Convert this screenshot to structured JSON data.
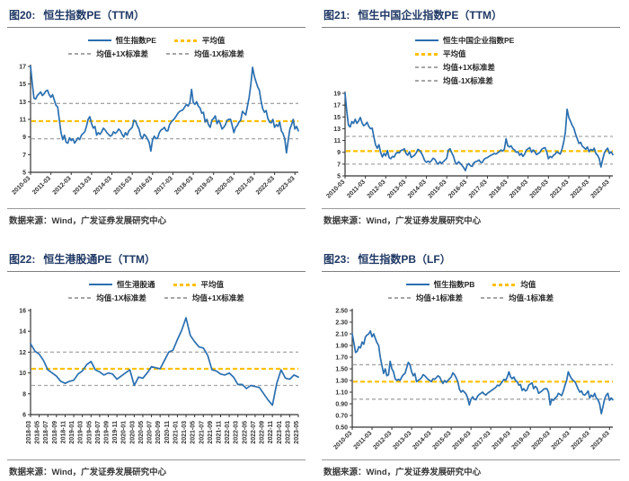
{
  "source_note": "数据来源：Wind，广发证券发展研究中心",
  "colors": {
    "line": "#2B6FB0",
    "mean": "#FFC000",
    "std": "#A6A6A6",
    "title": "#1F3864",
    "axis": "#333333"
  },
  "panels": [
    {
      "fig_label": "图20:",
      "title": "恒生指数PE（TTM）",
      "legend_layout": "grid",
      "legend_rows": [
        [
          0,
          1
        ],
        [
          2,
          3
        ]
      ]
    },
    {
      "fig_label": "图21:",
      "title": "恒生中国企业指数PE（TTM）",
      "legend_layout": "stack",
      "legend_rows": [
        [
          0
        ],
        [
          1
        ],
        [
          2
        ],
        [
          3
        ]
      ]
    },
    {
      "fig_label": "图22:",
      "title": "恒生港股通PE（TTM）",
      "legend_layout": "grid",
      "legend_rows": [
        [
          0,
          1
        ],
        [
          2,
          3
        ]
      ]
    },
    {
      "fig_label": "图23:",
      "title": "恒生指数PB（LF）",
      "legend_layout": "grid",
      "legend_rows": [
        [
          0,
          1
        ],
        [
          2,
          3
        ]
      ]
    }
  ],
  "chart_data": [
    {
      "type": "line",
      "title": "恒生指数PE（TTM）",
      "legend": [
        {
          "label": "恒生指数PE",
          "style": "line",
          "color": "line"
        },
        {
          "label": "平均值",
          "style": "dash",
          "color": "mean"
        },
        {
          "label": "均值+1X标准差",
          "style": "dash",
          "color": "std"
        },
        {
          "label": "均值-1X标准差",
          "style": "dash",
          "color": "std"
        }
      ],
      "x_start": "2010-03",
      "x_end": "2023-05",
      "x_freq": "monthly",
      "x_tick_labels": [
        "2010-03",
        "2011-03",
        "2012-03",
        "2013-03",
        "2014-03",
        "2015-03",
        "2016-03",
        "2017-03",
        "2018-03",
        "2019-03",
        "2020-03",
        "2021-03",
        "2022-03",
        "2023-03"
      ],
      "x_tick_every": 12,
      "ylim": [
        5,
        17
      ],
      "yticks": [
        5,
        7,
        9,
        11,
        13,
        15,
        17
      ],
      "ytick_labels": [
        "5",
        "7",
        "9",
        "11",
        "13",
        "15",
        "17"
      ],
      "ref_lines": {
        "mean": 10.8,
        "plus1std": 12.8,
        "minus1std": 8.8
      },
      "series": [
        {
          "name": "恒生指数PE",
          "values": [
            17.0,
            15.1,
            13.4,
            13.3,
            13.7,
            13.9,
            14.1,
            13.7,
            13.9,
            14.2,
            14.3,
            13.8,
            13.5,
            13.8,
            13.2,
            12.6,
            12.4,
            10.9,
            9.5,
            8.7,
            9.2,
            8.4,
            8.3,
            8.9,
            8.6,
            8.8,
            8.3,
            8.6,
            8.9,
            8.7,
            9.2,
            9.4,
            9.6,
            10.2,
            11.0,
            11.3,
            10.5,
            10.0,
            10.2,
            9.2,
            9.5,
            9.3,
            9.6,
            10.0,
            9.8,
            9.5,
            9.3,
            9.1,
            9.2,
            9.6,
            9.4,
            9.6,
            9.9,
            9.7,
            9.3,
            9.0,
            9.5,
            9.2,
            9.7,
            9.9,
            10.1,
            10.9,
            10.8,
            10.3,
            9.9,
            9.1,
            8.8,
            9.3,
            9.1,
            8.8,
            8.4,
            7.4,
            8.7,
            9.1,
            8.8,
            8.9,
            9.5,
            9.8,
            9.9,
            10.1,
            9.7,
            9.7,
            10.4,
            10.7,
            10.9,
            11.1,
            11.4,
            11.7,
            11.9,
            12.0,
            12.1,
            12.4,
            12.7,
            12.5,
            12.9,
            14.4,
            12.9,
            12.7,
            13.0,
            12.5,
            12.3,
            11.7,
            11.8,
            10.7,
            11.0,
            10.4,
            10.1,
            10.9,
            11.1,
            11.4,
            10.5,
            10.9,
            10.5,
            9.9,
            10.1,
            10.4,
            10.9,
            11.0,
            11.0,
            10.3,
            9.5,
            10.1,
            10.3,
            10.7,
            10.9,
            11.9,
            11.7,
            11.5,
            12.5,
            13.5,
            15.0,
            16.9,
            15.9,
            15.3,
            14.7,
            14.3,
            13.1,
            12.2,
            11.8,
            12.0,
            11.1,
            10.7,
            10.6,
            11.0,
            10.1,
            10.4,
            10.2,
            10.7,
            9.7,
            9.4,
            8.8,
            7.2,
            8.6,
            9.9,
            10.4,
            11.0,
            9.9,
            10.2,
            9.7
          ]
        }
      ]
    },
    {
      "type": "line",
      "title": "恒生中国企业指数PE（TTM）",
      "legend": [
        {
          "label": "恒生中国企业指数PE",
          "style": "line",
          "color": "line"
        },
        {
          "label": "平均值",
          "style": "dash",
          "color": "mean"
        },
        {
          "label": "均值+1X标准差",
          "style": "dash",
          "color": "std"
        },
        {
          "label": "均值-1X标准差",
          "style": "dash",
          "color": "std"
        }
      ],
      "x_start": "2010-03",
      "x_end": "2023-05",
      "x_freq": "monthly",
      "x_tick_labels": [
        "2010-03",
        "2011-03",
        "2012-03",
        "2013-03",
        "2014-03",
        "2015-03",
        "2016-03",
        "2017-03",
        "2018-03",
        "2019-03",
        "2020-03",
        "2021-03",
        "2022-03",
        "2023-03"
      ],
      "x_tick_every": 12,
      "ylim": [
        5,
        19
      ],
      "yticks": [
        5,
        7,
        9,
        11,
        13,
        15,
        17,
        19
      ],
      "ytick_labels": [
        "5",
        "7",
        "9",
        "11",
        "13",
        "15",
        "17",
        "19"
      ],
      "ref_lines": {
        "mean": 9.2,
        "plus1std": 11.7,
        "minus1std": 7.0
      },
      "series": [
        {
          "name": "恒生中国企业指数PE",
          "values": [
            19.0,
            16.0,
            13.6,
            13.3,
            14.2,
            13.9,
            14.6,
            13.9,
            14.3,
            14.9,
            14.0,
            13.5,
            13.7,
            14.1,
            13.4,
            13.0,
            13.1,
            11.6,
            10.3,
            9.7,
            10.3,
            9.0,
            8.2,
            8.8,
            8.4,
            9.3,
            8.1,
            7.9,
            8.3,
            8.2,
            8.8,
            9.0,
            8.9,
            9.3,
            9.4,
            9.6,
            8.8,
            8.5,
            9.1,
            8.1,
            8.3,
            8.5,
            8.9,
            9.5,
            9.3,
            8.9,
            8.3,
            7.6,
            7.3,
            7.5,
            7.3,
            7.6,
            8.0,
            7.8,
            7.3,
            7.0,
            7.4,
            7.1,
            7.4,
            7.7,
            8.0,
            9.4,
            9.6,
            8.9,
            8.3,
            7.3,
            7.0,
            7.4,
            7.1,
            6.8,
            6.4,
            5.9,
            6.8,
            7.1,
            6.7,
            6.6,
            7.2,
            7.4,
            7.5,
            7.7,
            7.3,
            7.3,
            7.8,
            8.0,
            8.1,
            8.3,
            8.5,
            8.6,
            8.8,
            8.7,
            8.9,
            9.1,
            9.4,
            9.2,
            9.5,
            11.3,
            10.1,
            9.9,
            10.1,
            9.6,
            9.4,
            9.0,
            9.1,
            8.5,
            8.8,
            8.3,
            8.7,
            9.4,
            9.6,
            9.8,
            9.0,
            9.4,
            9.1,
            8.6,
            8.8,
            9.0,
            9.5,
            9.7,
            9.8,
            9.1,
            7.9,
            8.3,
            8.1,
            8.5,
            8.7,
            9.1,
            8.9,
            8.7,
            9.5,
            10.7,
            12.4,
            16.3,
            14.9,
            14.3,
            13.6,
            13.1,
            12.1,
            11.3,
            10.5,
            10.7,
            10.0,
            9.8,
            9.5,
            9.9,
            9.1,
            9.5,
            9.3,
            9.7,
            8.8,
            8.5,
            7.9,
            6.5,
            7.8,
            8.9,
            9.4,
            9.7,
            8.8,
            9.1,
            8.6
          ]
        }
      ]
    },
    {
      "type": "line",
      "title": "恒生港股通PE（TTM）",
      "legend": [
        {
          "label": "恒生港股通",
          "style": "line",
          "color": "line"
        },
        {
          "label": "平均值",
          "style": "dash",
          "color": "mean"
        },
        {
          "label": "均值-1X标准差",
          "style": "dash",
          "color": "std"
        },
        {
          "label": "均值+1X标准差",
          "style": "dash",
          "color": "std"
        }
      ],
      "x_start": "2018-03",
      "x_end": "2023-05",
      "x_freq": "monthly",
      "x_tick_labels": [
        "2018-03",
        "2018-05",
        "2018-07",
        "2018-09",
        "2018-11",
        "2019-01",
        "2019-03",
        "2019-05",
        "2019-07",
        "2019-09",
        "2019-11",
        "2020-01",
        "2020-03",
        "2020-05",
        "2020-07",
        "2020-09",
        "2020-11",
        "2021-01",
        "2021-03",
        "2021-05",
        "2021-07",
        "2021-09",
        "2021-11",
        "2022-01",
        "2022-03",
        "2022-05",
        "2022-07",
        "2022-09",
        "2022-11",
        "2023-01",
        "2023-03",
        "2023-05"
      ],
      "x_tick_every": 2,
      "ylim": [
        6,
        16
      ],
      "yticks": [
        6,
        8,
        10,
        12,
        14,
        16
      ],
      "ytick_labels": [
        "6",
        "8",
        "10",
        "12",
        "14",
        "16"
      ],
      "ref_lines": {
        "mean": 10.4,
        "plus1std": 12.0,
        "minus1std": 8.8
      },
      "series": [
        {
          "name": "恒生港股通",
          "values": [
            12.8,
            12.1,
            11.8,
            11.2,
            10.3,
            10.0,
            9.7,
            9.2,
            9.0,
            9.2,
            9.3,
            9.9,
            10.2,
            10.8,
            11.1,
            10.3,
            10.1,
            9.8,
            10.0,
            9.9,
            9.4,
            9.7,
            10.0,
            10.3,
            8.8,
            9.6,
            9.5,
            10.0,
            10.6,
            10.5,
            10.4,
            11.2,
            12.0,
            12.2,
            13.2,
            14.1,
            15.3,
            13.6,
            13.0,
            12.5,
            12.4,
            11.7,
            10.3,
            10.2,
            9.9,
            9.8,
            10.0,
            9.6,
            8.9,
            8.9,
            8.5,
            8.8,
            8.7,
            8.6,
            8.0,
            7.4,
            6.9,
            9.0,
            10.3,
            9.5,
            9.4,
            9.8,
            9.6
          ]
        }
      ]
    },
    {
      "type": "line",
      "title": "恒生指数PB（LF）",
      "legend": [
        {
          "label": "恒生指数PB",
          "style": "line",
          "color": "line"
        },
        {
          "label": "均值",
          "style": "dash",
          "color": "mean"
        },
        {
          "label": "均值+1标准差",
          "style": "dash",
          "color": "std"
        },
        {
          "label": "均值-1标准差",
          "style": "dash",
          "color": "std"
        }
      ],
      "x_start": "2010-03",
      "x_end": "2023-05",
      "x_freq": "monthly",
      "x_tick_labels": [
        "2010-03",
        "2011-03",
        "2012-03",
        "2013-03",
        "2014-03",
        "2015-03",
        "2016-03",
        "2017-03",
        "2018-03",
        "2019-03",
        "2020-03",
        "2021-03",
        "2022-03",
        "2023-03"
      ],
      "x_tick_every": 12,
      "ylim": [
        0.5,
        2.5
      ],
      "yticks": [
        0.5,
        0.7,
        0.9,
        1.1,
        1.3,
        1.5,
        1.7,
        1.9,
        2.1,
        2.3,
        2.5
      ],
      "ytick_labels": [
        "0.50",
        "0.70",
        "0.90",
        "1.10",
        "1.30",
        "1.50",
        "1.70",
        "1.90",
        "2.10",
        "2.30",
        "2.50"
      ],
      "ref_lines": {
        "mean": 1.28,
        "plus1std": 1.57,
        "minus1std": 0.98
      },
      "series": [
        {
          "name": "恒生指数PB",
          "values": [
            2.1,
            1.95,
            1.78,
            1.8,
            1.88,
            1.86,
            1.96,
            1.92,
            2.05,
            2.08,
            2.1,
            2.15,
            2.05,
            2.1,
            2.02,
            1.95,
            1.9,
            1.7,
            1.56,
            1.42,
            1.5,
            1.38,
            1.4,
            1.63,
            1.5,
            1.45,
            1.33,
            1.3,
            1.32,
            1.3,
            1.36,
            1.4,
            1.42,
            1.52,
            1.61,
            1.57,
            1.45,
            1.38,
            1.42,
            1.28,
            1.3,
            1.32,
            1.35,
            1.4,
            1.38,
            1.35,
            1.32,
            1.3,
            1.28,
            1.33,
            1.32,
            1.35,
            1.38,
            1.36,
            1.3,
            1.25,
            1.3,
            1.27,
            1.3,
            1.33,
            1.36,
            1.43,
            1.4,
            1.35,
            1.28,
            1.15,
            1.1,
            1.13,
            1.1,
            1.07,
            1.0,
            0.88,
            0.98,
            1.02,
            0.98,
            0.97,
            1.03,
            1.06,
            1.08,
            1.1,
            1.07,
            1.05,
            1.08,
            1.1,
            1.12,
            1.14,
            1.16,
            1.18,
            1.22,
            1.21,
            1.24,
            1.28,
            1.32,
            1.3,
            1.36,
            1.45,
            1.36,
            1.33,
            1.36,
            1.3,
            1.28,
            1.22,
            1.23,
            1.13,
            1.16,
            1.12,
            1.14,
            1.22,
            1.24,
            1.26,
            1.16,
            1.2,
            1.17,
            1.08,
            1.1,
            1.12,
            1.15,
            1.16,
            1.16,
            1.1,
            0.88,
            0.98,
            0.96,
            1.0,
            1.02,
            1.08,
            1.06,
            1.04,
            1.12,
            1.22,
            1.3,
            1.45,
            1.38,
            1.33,
            1.3,
            1.28,
            1.22,
            1.15,
            1.1,
            1.12,
            1.06,
            1.05,
            1.08,
            1.12,
            1.0,
            1.05,
            1.02,
            1.08,
            1.0,
            0.97,
            0.9,
            0.73,
            0.85,
            0.98,
            1.05,
            1.08,
            0.96,
            1.0,
            0.97
          ]
        }
      ]
    }
  ]
}
